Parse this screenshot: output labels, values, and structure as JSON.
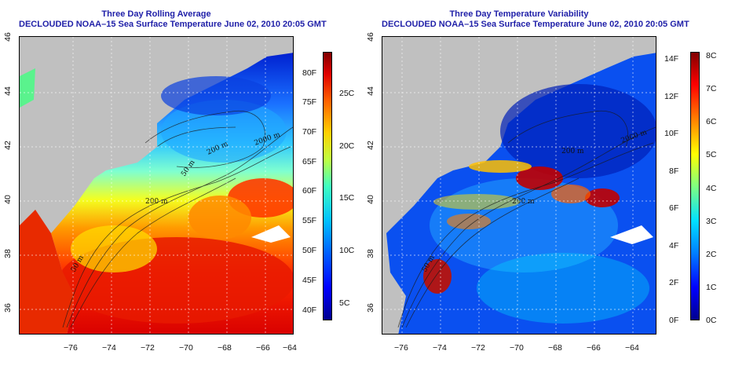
{
  "left_panel": {
    "title_line1": "Three Day Rolling Average",
    "title_line2": "DECLOUDED NOAA–15 Sea Surface Temperature June 02, 2010 20:05 GMT",
    "lon_ticks": [
      "−76",
      "−74",
      "−72",
      "−70",
      "−68",
      "−66",
      "−64"
    ],
    "lat_ticks": [
      "36",
      "38",
      "40",
      "42",
      "44",
      "46"
    ],
    "contour_labels": [
      "2000 m",
      "200 m",
      "50 m",
      "200 m",
      "50 m"
    ],
    "colorbar": {
      "fahrenheit_ticks": [
        "40F",
        "45F",
        "50F",
        "55F",
        "60F",
        "65F",
        "70F",
        "75F",
        "80F"
      ],
      "celsius_ticks": [
        "5C",
        "10C",
        "15C",
        "20C",
        "25C"
      ]
    }
  },
  "right_panel": {
    "title_line1": "Three Day Temperature Variability",
    "title_line2": "DECLOUDED NOAA–15 Sea Surface Temperature June 02, 2010 20:05 GMT",
    "lon_ticks": [
      "−76",
      "−74",
      "−72",
      "−70",
      "−68",
      "−66",
      "−64"
    ],
    "lat_ticks": [
      "36",
      "38",
      "40",
      "42",
      "44",
      "46"
    ],
    "contour_labels": [
      "2000 m",
      "200 m",
      "200 m",
      "50 m"
    ],
    "colorbar": {
      "fahrenheit_ticks": [
        "0F",
        "2F",
        "4F",
        "6F",
        "8F",
        "10F",
        "12F",
        "14F"
      ],
      "celsius_ticks": [
        "0C",
        "1C",
        "2C",
        "3C",
        "4C",
        "5C",
        "6C",
        "7C",
        "8C"
      ]
    }
  },
  "colors": {
    "land": "#c0c0c0",
    "title": "#1f1fa8",
    "scale": [
      "#00008f",
      "#0000ff",
      "#0080ff",
      "#00ffff",
      "#80ff80",
      "#ffff00",
      "#ff8000",
      "#ff0000",
      "#800000"
    ]
  }
}
